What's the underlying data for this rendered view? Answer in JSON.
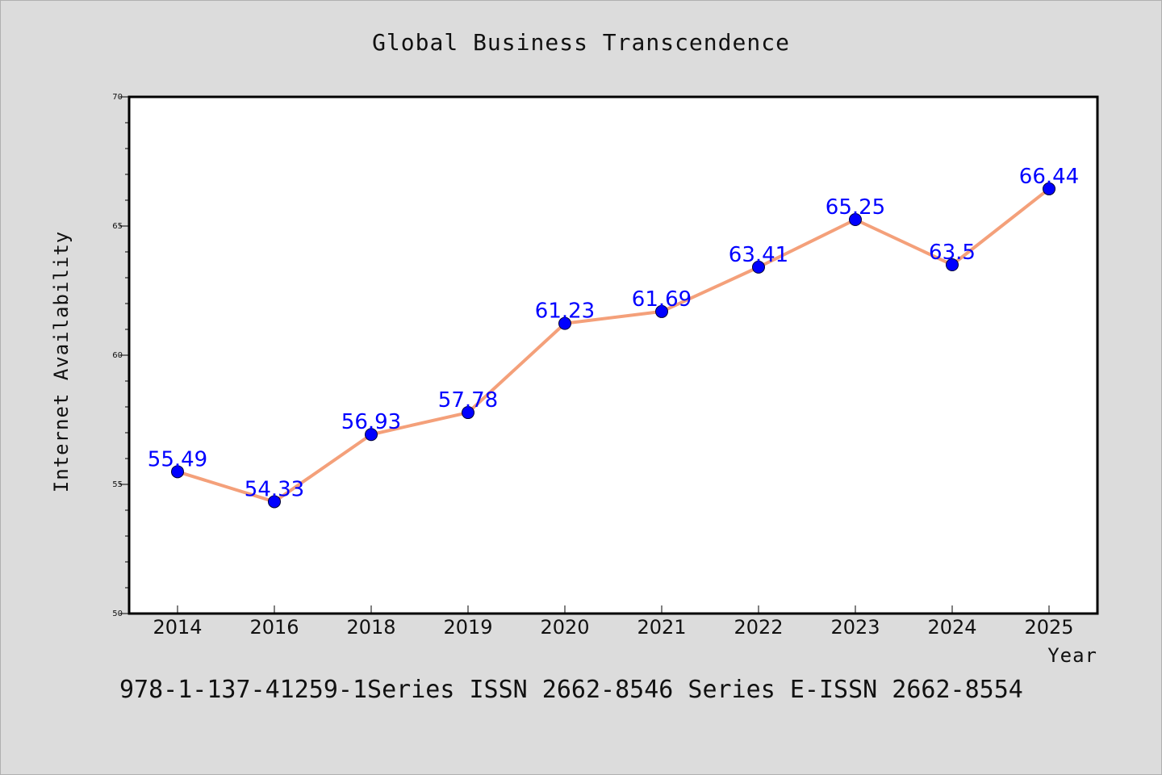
{
  "chart_data": {
    "type": "line",
    "title": "Global Business Transcendence",
    "xlabel": "Year",
    "ylabel": "Internet Availability",
    "categories": [
      "2014",
      "2016",
      "2018",
      "2019",
      "2020",
      "2021",
      "2022",
      "2023",
      "2024",
      "2025"
    ],
    "series": [
      {
        "values": [
          55.49,
          54.33,
          56.93,
          57.78,
          61.23,
          61.69,
          63.41,
          65.25,
          63.5,
          66.44
        ],
        "data_labels": [
          "55.49",
          "54.33",
          "56.93",
          "57.78",
          "61.23",
          "61.69",
          "63.41",
          "65.25",
          "63.5",
          "66.44"
        ],
        "line_color": "#f4a07a",
        "marker_color": "#0000ff"
      }
    ],
    "ylim": [
      50,
      70
    ],
    "yticks": [
      "50",
      "55",
      "60",
      "65",
      "70"
    ],
    "grid": false,
    "legend": "none",
    "background_color": "#dcdcdc",
    "plot_background_color": "#ffffff"
  },
  "footer": {
    "text": "978-1-137-41259-1Series ISSN 2662-8546 Series E-ISSN 2662-8554"
  }
}
